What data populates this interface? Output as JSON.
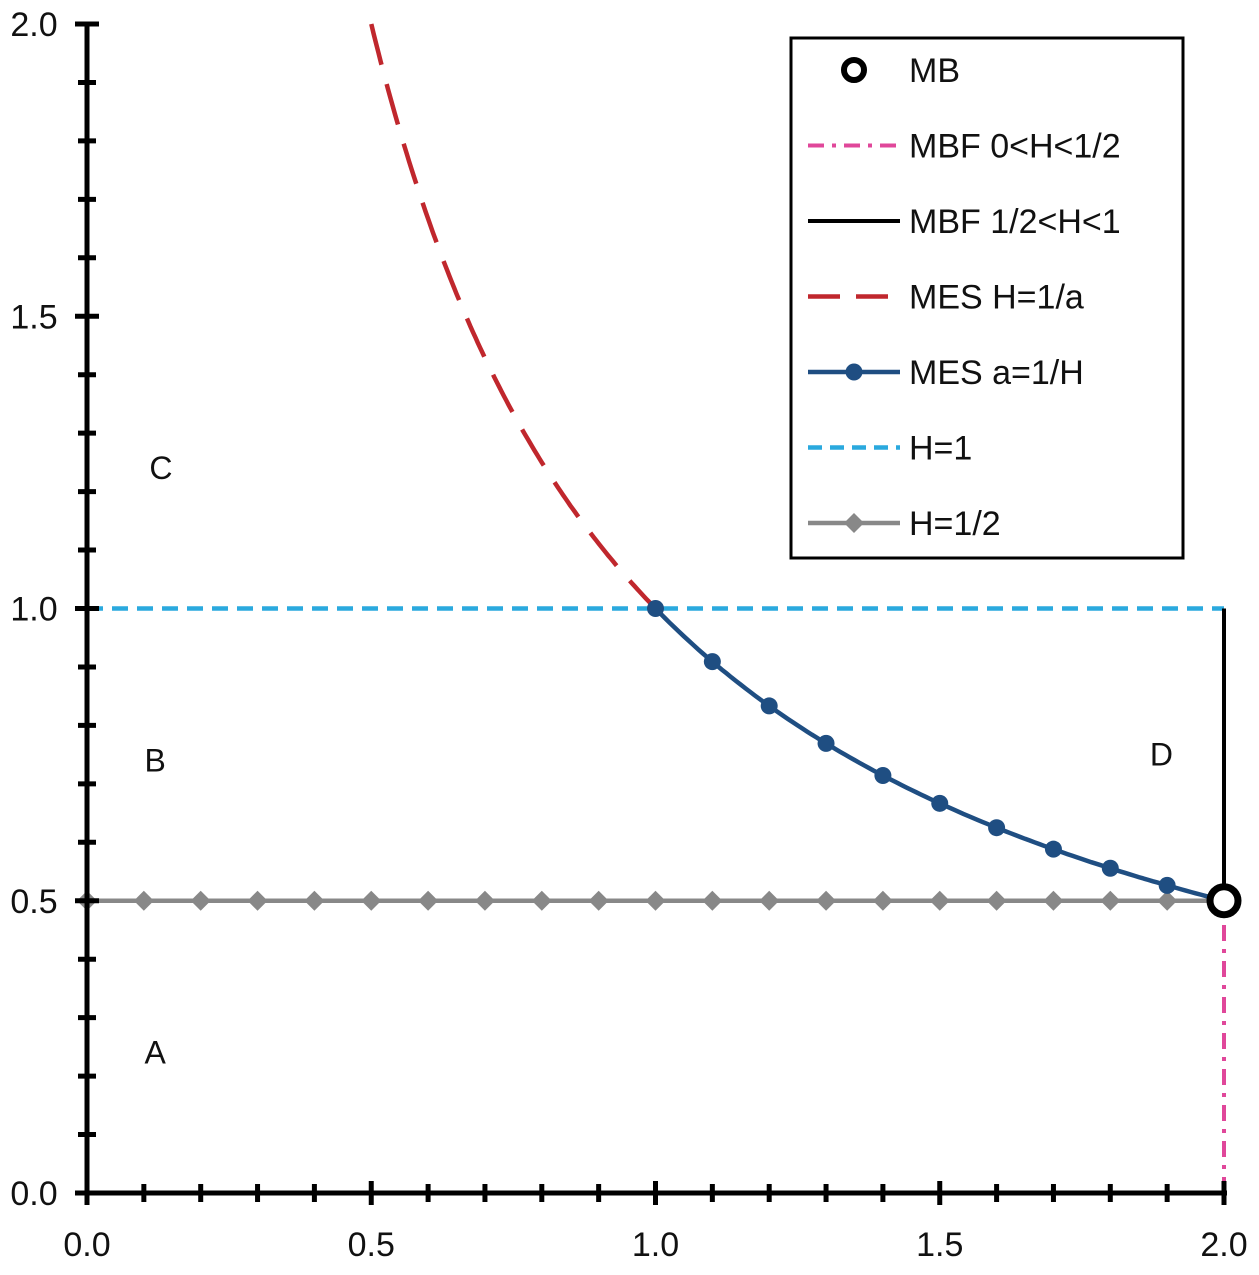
{
  "chart_data": {
    "type": "line",
    "title": "",
    "xlabel": "",
    "ylabel": "",
    "xlim": [
      0,
      2
    ],
    "ylim": [
      0,
      2
    ],
    "x_ticks": [
      "0.0",
      "0.5",
      "1.0",
      "1.5",
      "2.0"
    ],
    "y_ticks": [
      "0.0",
      "0.5",
      "1.0",
      "1.5",
      "2.0"
    ],
    "x_minor_step": 0.1,
    "y_minor_step": 0.1,
    "grid": false,
    "legend_position": "top-right",
    "series": [
      {
        "name": "MB",
        "style": "open-circle-marker",
        "color": "#000000",
        "points": [
          [
            2.0,
            0.5
          ]
        ]
      },
      {
        "name": "MBF 0<H<1/2",
        "style": "dash-dot",
        "color": "#e0479a",
        "points": [
          [
            2.0,
            0.0
          ],
          [
            2.0,
            0.5
          ]
        ]
      },
      {
        "name": "MBF 1/2<H<1",
        "style": "solid",
        "color": "#000000",
        "points": [
          [
            2.0,
            0.5
          ],
          [
            2.0,
            1.0
          ]
        ]
      },
      {
        "name": "MES H=1/a",
        "style": "long-dash",
        "color": "#c0272d",
        "function": "1/x",
        "x_range": [
          0.5,
          1.0
        ]
      },
      {
        "name": "MES a=1/H",
        "style": "solid-circle-markers",
        "color": "#1f4e82",
        "function": "1/x",
        "x_range": [
          1.0,
          2.0
        ],
        "marker_x": [
          1.0,
          1.1,
          1.2,
          1.3,
          1.4,
          1.5,
          1.6,
          1.7,
          1.8,
          1.9
        ]
      },
      {
        "name": "H=1",
        "style": "short-dash",
        "color": "#2aa9de",
        "points": [
          [
            0.0,
            1.0
          ],
          [
            2.0,
            1.0
          ]
        ]
      },
      {
        "name": "H=1/2",
        "style": "solid-diamond-markers",
        "color": "#888888",
        "points": [
          [
            0.0,
            0.5
          ],
          [
            2.0,
            0.5
          ]
        ],
        "marker_x": [
          0.0,
          0.1,
          0.2,
          0.3,
          0.4,
          0.5,
          0.6,
          0.7,
          0.8,
          0.9,
          1.0,
          1.1,
          1.2,
          1.3,
          1.4,
          1.5,
          1.6,
          1.7,
          1.8,
          1.9
        ]
      }
    ],
    "annotations": [
      {
        "text": "A",
        "x": 0.12,
        "y": 0.24
      },
      {
        "text": "B",
        "x": 0.12,
        "y": 0.74
      },
      {
        "text": "C",
        "x": 0.13,
        "y": 1.24
      },
      {
        "text": "D",
        "x": 1.89,
        "y": 0.75
      }
    ]
  }
}
